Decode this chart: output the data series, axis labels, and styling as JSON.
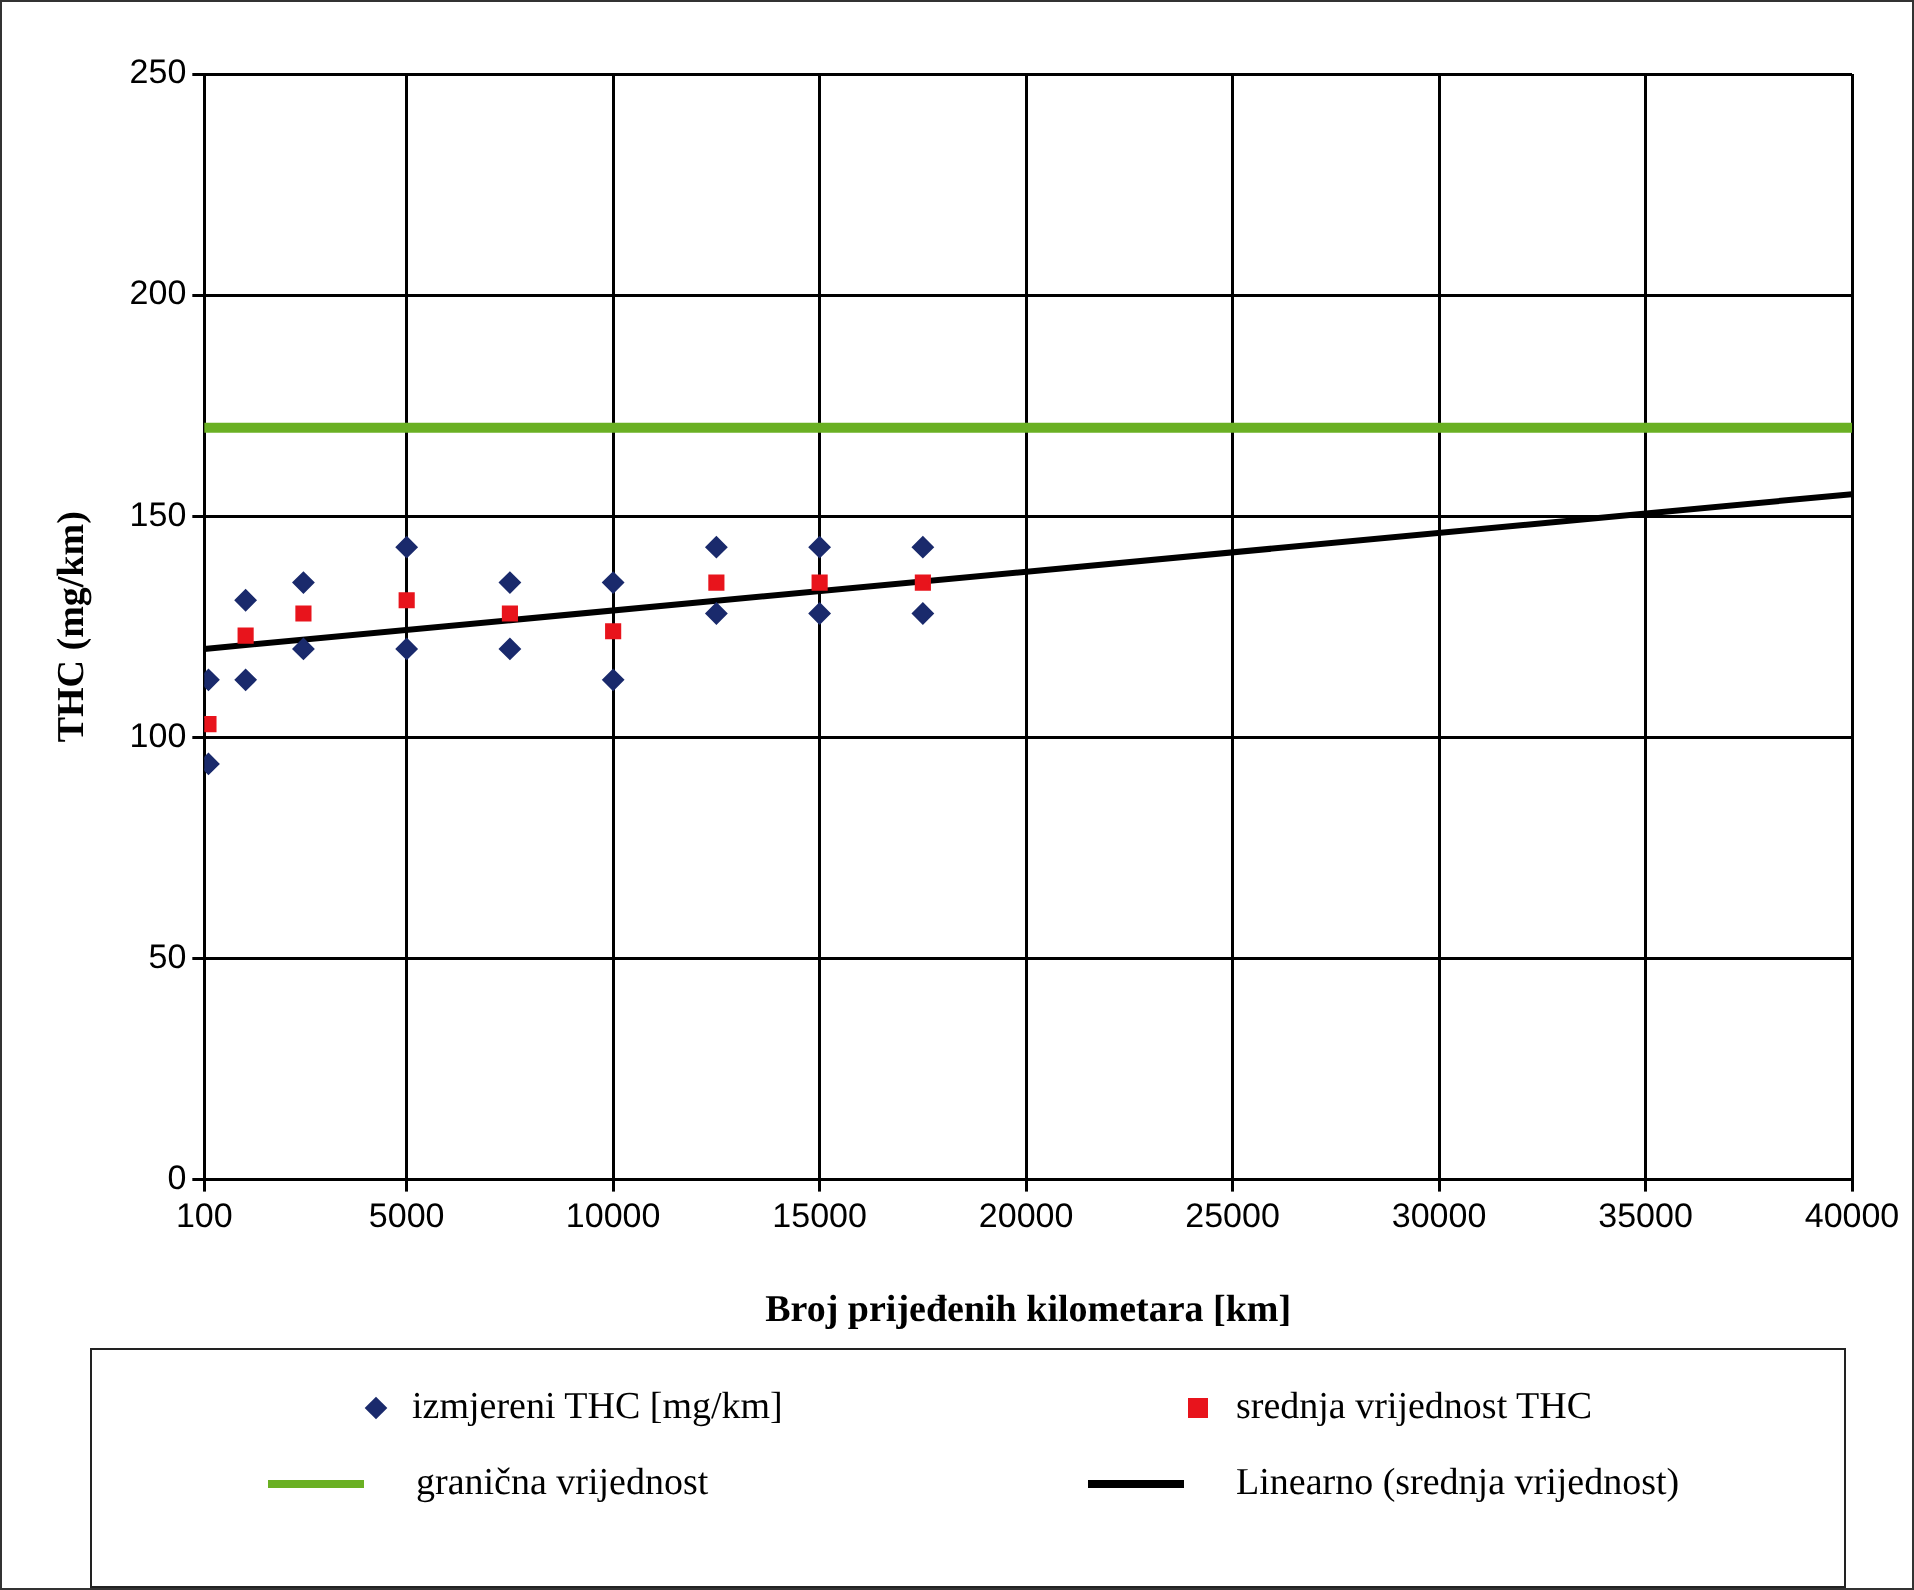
{
  "chart_data": {
    "type": "scatter",
    "xlabel": "Broj prijeđenih kilometara [km]",
    "ylabel": "THC (mg/km)",
    "xlim": [
      100,
      40000
    ],
    "xticks": [
      100,
      5000,
      10000,
      15000,
      20000,
      25000,
      30000,
      35000,
      40000
    ],
    "ylim": [
      0,
      250
    ],
    "yticks": [
      0,
      50,
      100,
      150,
      200,
      250
    ],
    "grid": true,
    "legend": "bottom",
    "series": [
      {
        "name": "izmjereni THC [mg/km]",
        "marker": "diamond",
        "color": "#1a2a6c",
        "x": [
          200,
          200,
          1100,
          1100,
          2500,
          2500,
          5000,
          5000,
          7500,
          7500,
          10000,
          10000,
          12500,
          12500,
          15000,
          15000,
          17500,
          17500
        ],
        "values": [
          113,
          94,
          131,
          113,
          135,
          120,
          143,
          120,
          135,
          120,
          135,
          113,
          143,
          128,
          143,
          128,
          143,
          128
        ]
      },
      {
        "name": "srednja vrijednost THC",
        "marker": "square",
        "color": "#e8141c",
        "x": [
          200,
          1100,
          2500,
          5000,
          7500,
          10000,
          12500,
          15000,
          17500
        ],
        "values": [
          103,
          123,
          128,
          131,
          128,
          124,
          135,
          135,
          135
        ]
      },
      {
        "name": "Linearno (srednja vrijednost)",
        "type": "line",
        "marker": "none",
        "color": "#000000",
        "x": [
          100,
          40000
        ],
        "values": [
          120,
          155
        ]
      }
    ],
    "ref_lines": [
      {
        "axis": "y",
        "value": 170,
        "label": "granična vrijednost",
        "color": "#6ab023"
      }
    ]
  }
}
